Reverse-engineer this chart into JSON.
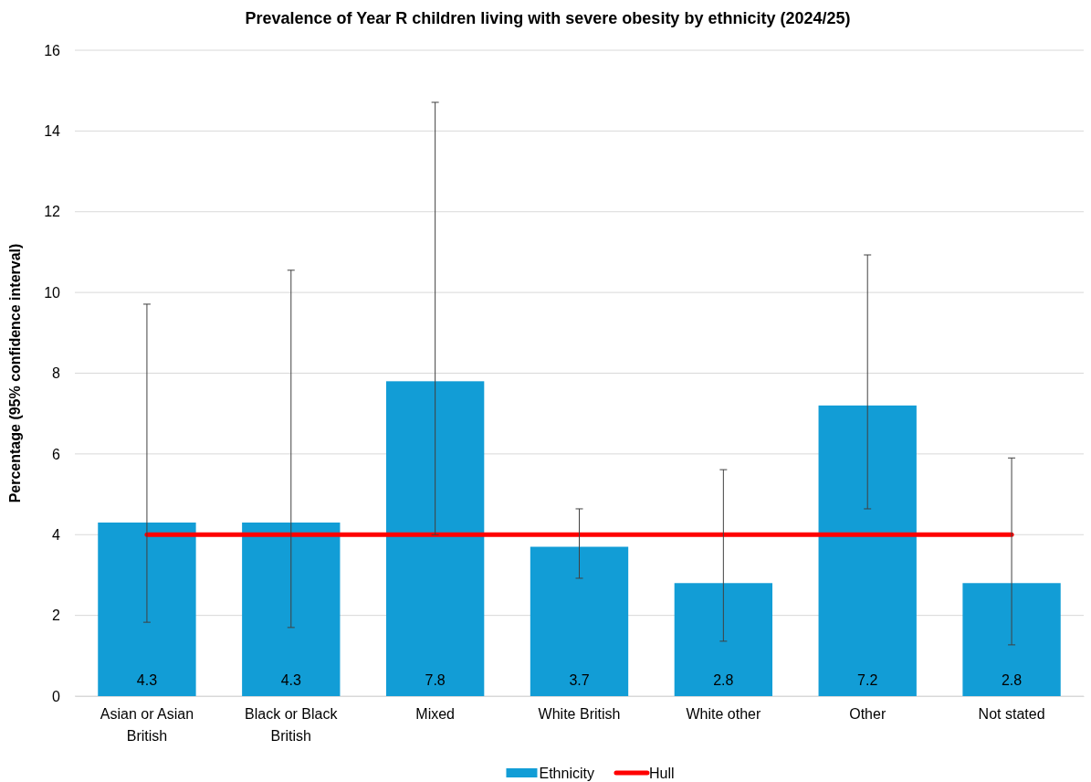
{
  "chart_data": {
    "type": "bar",
    "title": "Prevalence of Year R children living with severe obesity by ethnicity (2024/25)",
    "ylabel": "Percentage (95% confidence interval)",
    "categories": [
      "Asian or Asian British",
      "Black or Black British",
      "Mixed",
      "White British",
      "White other",
      "Other",
      "Not stated"
    ],
    "series": [
      {
        "name": "Ethnicity",
        "color": "#129dd6",
        "values": [
          4.3,
          4.3,
          7.8,
          3.7,
          2.8,
          7.2,
          2.8
        ],
        "value_labels": [
          "4.3",
          "4.3",
          "7.8",
          "3.7",
          "2.8",
          "7.2",
          "2.8"
        ],
        "errors": [
          [
            1.83,
            9.71
          ],
          [
            1.7,
            10.55
          ],
          [
            4.0,
            14.71
          ],
          [
            2.92,
            4.64
          ],
          [
            1.36,
            5.61
          ],
          [
            4.64,
            10.93
          ],
          [
            1.27,
            5.9
          ]
        ]
      },
      {
        "name": "Hull",
        "type": "line",
        "color": "#ff0000",
        "values": [
          4.0,
          4.0,
          4.0,
          4.0,
          4.0,
          4.0,
          4.0
        ]
      }
    ],
    "ylim": [
      0,
      16
    ],
    "yticks": [
      0,
      2,
      4,
      6,
      8,
      10,
      12,
      14,
      16
    ],
    "grid": "y",
    "legend": "bottom",
    "marker": "none",
    "line_style": "solid"
  }
}
